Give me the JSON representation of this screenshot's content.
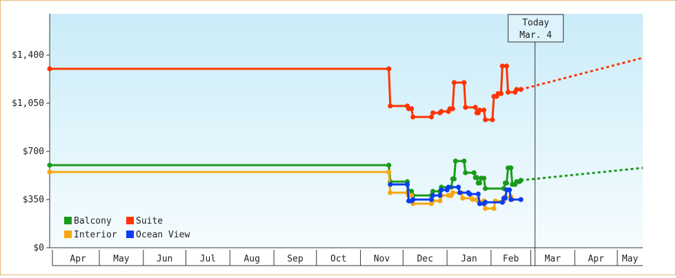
{
  "chart_data": {
    "type": "line",
    "x_unit": "date",
    "y_ticks": [
      0,
      350,
      700,
      1050,
      1400
    ],
    "y_tick_labels": [
      "$0",
      "$350",
      "$700",
      "$1,050",
      "$1,400"
    ],
    "ylim": [
      0,
      1700
    ],
    "x_tick_labels": [
      "Apr",
      "May",
      "Jun",
      "Jul",
      "Aug",
      "Sep",
      "Oct",
      "Nov",
      "Dec",
      "Jan",
      "Feb",
      "Mar",
      "Apr",
      "May"
    ],
    "xlim": [
      "2025-03-27",
      "2026-05-19"
    ],
    "today": {
      "label": "Today",
      "date_label": "Mar. 4",
      "date": "2026-03-04"
    },
    "legend": {
      "position": "bottom-left"
    },
    "grid": false,
    "series": [
      {
        "name": "Balcony",
        "color": "#1a9a1a",
        "points": [
          [
            "2025-03-27",
            600
          ],
          [
            "2025-11-21",
            600
          ],
          [
            "2025-11-22",
            480
          ],
          [
            "2025-12-04",
            480
          ],
          [
            "2025-12-05",
            410
          ],
          [
            "2025-12-07",
            410
          ],
          [
            "2025-12-08",
            380
          ],
          [
            "2025-12-21",
            380
          ],
          [
            "2025-12-22",
            410
          ],
          [
            "2025-12-27",
            410
          ],
          [
            "2025-12-28",
            440
          ],
          [
            "2026-01-04",
            440
          ],
          [
            "2026-01-05",
            500
          ],
          [
            "2026-01-06",
            500
          ],
          [
            "2026-01-07",
            630
          ],
          [
            "2026-01-13",
            630
          ],
          [
            "2026-01-14",
            545
          ],
          [
            "2026-01-20",
            545
          ],
          [
            "2026-01-21",
            510
          ],
          [
            "2026-01-22",
            510
          ],
          [
            "2026-01-23",
            470
          ],
          [
            "2026-01-24",
            470
          ],
          [
            "2026-01-25",
            505
          ],
          [
            "2026-01-27",
            505
          ],
          [
            "2026-01-28",
            430
          ],
          [
            "2026-02-10",
            430
          ],
          [
            "2026-02-11",
            470
          ],
          [
            "2026-02-12",
            470
          ],
          [
            "2026-02-13",
            580
          ],
          [
            "2026-02-15",
            580
          ],
          [
            "2026-02-16",
            460
          ],
          [
            "2026-02-18",
            460
          ],
          [
            "2026-02-19",
            480
          ],
          [
            "2026-02-21",
            480
          ],
          [
            "2026-02-22",
            490
          ]
        ],
        "projection": [
          [
            "2026-02-22",
            490
          ],
          [
            "2026-05-19",
            580
          ]
        ]
      },
      {
        "name": "Suite",
        "color": "#ff3300",
        "points": [
          [
            "2025-03-27",
            1300
          ],
          [
            "2025-11-21",
            1300
          ],
          [
            "2025-11-22",
            1030
          ],
          [
            "2025-12-04",
            1030
          ],
          [
            "2025-12-05",
            1010
          ],
          [
            "2025-12-07",
            1010
          ],
          [
            "2025-12-08",
            950
          ],
          [
            "2025-12-21",
            950
          ],
          [
            "2025-12-22",
            980
          ],
          [
            "2025-12-27",
            980
          ],
          [
            "2025-12-28",
            990
          ],
          [
            "2026-01-02",
            990
          ],
          [
            "2026-01-03",
            1010
          ],
          [
            "2026-01-05",
            1010
          ],
          [
            "2026-01-06",
            1200
          ],
          [
            "2026-01-13",
            1200
          ],
          [
            "2026-01-14",
            1020
          ],
          [
            "2026-01-21",
            1020
          ],
          [
            "2026-01-22",
            980
          ],
          [
            "2026-01-23",
            980
          ],
          [
            "2026-01-24",
            1000
          ],
          [
            "2026-01-27",
            1000
          ],
          [
            "2026-01-28",
            930
          ],
          [
            "2026-02-02",
            930
          ],
          [
            "2026-02-03",
            1100
          ],
          [
            "2026-02-05",
            1100
          ],
          [
            "2026-02-06",
            1120
          ],
          [
            "2026-02-08",
            1120
          ],
          [
            "2026-02-09",
            1320
          ],
          [
            "2026-02-12",
            1320
          ],
          [
            "2026-02-13",
            1130
          ],
          [
            "2026-02-18",
            1130
          ],
          [
            "2026-02-19",
            1150
          ],
          [
            "2026-02-22",
            1150
          ]
        ],
        "projection": [
          [
            "2026-02-22",
            1150
          ],
          [
            "2026-05-19",
            1380
          ]
        ]
      },
      {
        "name": "Interior",
        "color": "#f5a814",
        "points": [
          [
            "2025-03-27",
            550
          ],
          [
            "2025-11-21",
            550
          ],
          [
            "2025-11-22",
            400
          ],
          [
            "2025-12-04",
            400
          ],
          [
            "2025-12-05",
            380
          ],
          [
            "2025-12-07",
            380
          ],
          [
            "2025-12-08",
            320
          ],
          [
            "2025-12-21",
            320
          ],
          [
            "2025-12-22",
            340
          ],
          [
            "2025-12-27",
            340
          ],
          [
            "2025-12-28",
            380
          ],
          [
            "2026-01-02",
            380
          ],
          [
            "2026-01-03",
            380
          ],
          [
            "2026-01-04",
            380
          ],
          [
            "2026-01-05",
            400
          ],
          [
            "2026-01-11",
            400
          ],
          [
            "2026-01-12",
            360
          ],
          [
            "2026-01-18",
            360
          ],
          [
            "2026-01-19",
            350
          ],
          [
            "2026-01-22",
            350
          ],
          [
            "2026-01-23",
            340
          ],
          [
            "2026-01-27",
            340
          ],
          [
            "2026-01-28",
            285
          ],
          [
            "2026-02-03",
            285
          ],
          [
            "2026-02-04",
            340
          ],
          [
            "2026-02-10",
            340
          ],
          [
            "2026-02-11",
            370
          ],
          [
            "2026-02-15",
            370
          ],
          [
            "2026-02-16",
            350
          ],
          [
            "2026-02-22",
            350
          ]
        ]
      },
      {
        "name": "Ocean View",
        "color": "#0a3cf0",
        "points": [
          [
            "2025-11-22",
            460
          ],
          [
            "2025-12-04",
            460
          ],
          [
            "2025-12-05",
            340
          ],
          [
            "2025-12-07",
            340
          ],
          [
            "2025-12-08",
            350
          ],
          [
            "2025-12-21",
            350
          ],
          [
            "2025-12-22",
            380
          ],
          [
            "2025-12-27",
            380
          ],
          [
            "2025-12-28",
            420
          ],
          [
            "2026-01-01",
            420
          ],
          [
            "2026-01-02",
            440
          ],
          [
            "2026-01-09",
            440
          ],
          [
            "2026-01-10",
            400
          ],
          [
            "2026-01-16",
            400
          ],
          [
            "2026-01-17",
            390
          ],
          [
            "2026-01-23",
            390
          ],
          [
            "2026-01-24",
            320
          ],
          [
            "2026-01-27",
            320
          ],
          [
            "2026-01-28",
            330
          ],
          [
            "2026-02-09",
            330
          ],
          [
            "2026-02-10",
            360
          ],
          [
            "2026-02-11",
            360
          ],
          [
            "2026-02-12",
            420
          ],
          [
            "2026-02-14",
            420
          ],
          [
            "2026-02-15",
            350
          ],
          [
            "2026-02-22",
            350
          ]
        ]
      }
    ]
  }
}
